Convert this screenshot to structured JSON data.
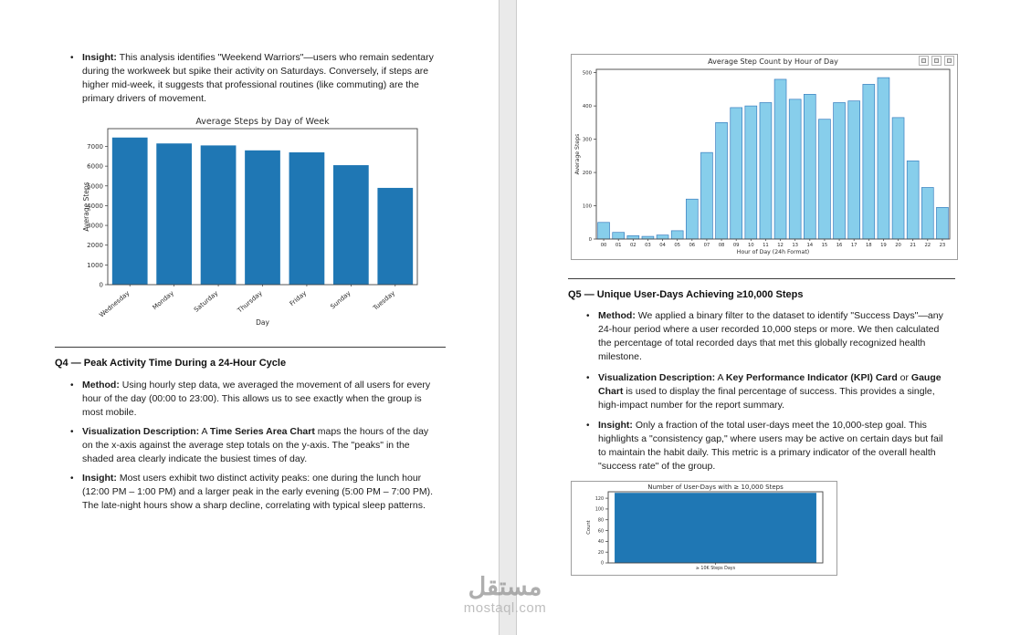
{
  "watermark": {
    "brand_arabic": "مستقل",
    "brand_domain": "mostaql.com"
  },
  "left_page": {
    "weekend_insight": {
      "segments": [
        {
          "text": "Insight:",
          "bold": true
        },
        {
          "text": " This analysis identifies \"Weekend Warriors\"—users who remain sedentary during the workweek but spike their activity on Saturdays. Conversely, if steps are higher mid-week, it suggests that professional routines (like commuting) are the primary drivers of movement.",
          "bold": false
        }
      ]
    },
    "q4_heading": "Q4 — Peak Activity Time During a 24-Hour Cycle",
    "q4_bullets": [
      {
        "segments": [
          {
            "text": "Method:",
            "bold": true
          },
          {
            "text": " Using hourly step data, we averaged the movement of all users for every hour of the day (00:00 to 23:00). This allows us to see exactly when the group is most mobile.",
            "bold": false
          }
        ]
      },
      {
        "segments": [
          {
            "text": "Visualization Description:",
            "bold": true
          },
          {
            "text": " A ",
            "bold": false
          },
          {
            "text": "Time Series Area Chart",
            "bold": true
          },
          {
            "text": " maps the hours of the day on the x-axis against the average step totals on the y-axis. The \"peaks\" in the shaded area clearly indicate the busiest times of day.",
            "bold": false
          }
        ]
      },
      {
        "segments": [
          {
            "text": "Insight:",
            "bold": true
          },
          {
            "text": " Most users exhibit two distinct activity peaks: one during the lunch hour (12:00 PM – 1:00 PM) and a larger peak in the early evening (5:00 PM – 7:00 PM). The late-night hours show a sharp decline, correlating with typical sleep patterns.",
            "bold": false
          }
        ]
      }
    ]
  },
  "right_page": {
    "q5_heading": "Q5 — Unique User-Days Achieving ≥10,000 Steps",
    "q5_bullets": [
      {
        "segments": [
          {
            "text": "Method:",
            "bold": true
          },
          {
            "text": " We applied a binary filter to the dataset to identify \"Success Days\"—any 24-hour period where a user recorded 10,000 steps or more. We then calculated the percentage of total recorded days that met this globally recognized health milestone.",
            "bold": false
          }
        ]
      },
      {
        "segments": [
          {
            "text": "Visualization Description:",
            "bold": true
          },
          {
            "text": " A ",
            "bold": false
          },
          {
            "text": "Key Performance Indicator (KPI) Card",
            "bold": true
          },
          {
            "text": " or ",
            "bold": false
          },
          {
            "text": "Gauge Chart",
            "bold": true
          },
          {
            "text": " is used to display the final percentage of success. This provides a single, high-impact number for the report summary.",
            "bold": false
          }
        ]
      },
      {
        "segments": [
          {
            "text": "Insight:",
            "bold": true
          },
          {
            "text": " Only a fraction of the total user-days meet the 10,000-step goal. This highlights a \"consistency gap,\" where users may be active on certain days but fail to maintain the habit daily. This metric is a primary indicator of the overall health \"success rate\" of the group.",
            "bold": false
          }
        ]
      }
    ]
  },
  "chart_data": [
    {
      "type": "bar",
      "title": "Average Steps by Day of Week",
      "xlabel": "Day",
      "ylabel": "Average Steps",
      "categories": [
        "Wednesday",
        "Monday",
        "Saturday",
        "Thursday",
        "Friday",
        "Sunday",
        "Tuesday"
      ],
      "values": [
        7450,
        7150,
        7050,
        6800,
        6700,
        6050,
        4900
      ],
      "ylim": [
        0,
        7900
      ],
      "ystep": 1000,
      "bar_color": "#1f77b4",
      "grid": false,
      "legend": "none"
    },
    {
      "type": "bar",
      "title": "Average Step Count by Hour of Day",
      "xlabel": "Hour of Day (24h Format)",
      "ylabel": "Average Steps",
      "categories": [
        "00",
        "01",
        "02",
        "03",
        "04",
        "05",
        "06",
        "07",
        "08",
        "09",
        "10",
        "11",
        "12",
        "13",
        "14",
        "15",
        "16",
        "17",
        "18",
        "19",
        "20",
        "21",
        "22",
        "23"
      ],
      "values": [
        50,
        20,
        10,
        8,
        12,
        25,
        120,
        260,
        350,
        395,
        400,
        410,
        480,
        420,
        435,
        360,
        410,
        415,
        465,
        485,
        365,
        235,
        155,
        95
      ],
      "ylim": [
        0,
        510
      ],
      "ystep": 100,
      "bar_color": "#87ceeb",
      "bar_edge": "#3a7ebf",
      "grid": false,
      "legend": "none"
    },
    {
      "type": "bar",
      "title": "Number of User-Days with ≥ 10,000 Steps",
      "xlabel": "",
      "ylabel": "Count",
      "categories": [
        "≥ 10K Steps Days"
      ],
      "values": [
        130
      ],
      "ylim": [
        0,
        132
      ],
      "ystep": 20,
      "bar_color": "#1f77b4",
      "grid": false,
      "legend": "none"
    }
  ]
}
